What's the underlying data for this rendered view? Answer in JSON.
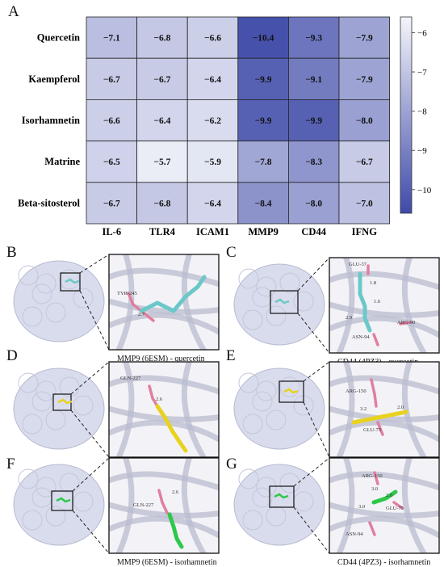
{
  "panel_a": {
    "letter": "A",
    "chart_data": {
      "type": "heatmap",
      "rows": [
        "Quercetin",
        "Kaempferol",
        "Isorhamnetin",
        "Matrine",
        "Beta-sitosterol"
      ],
      "columns": [
        "IL-6",
        "TLR4",
        "ICAM1",
        "MMP9",
        "CD44",
        "IFNG"
      ],
      "values": [
        [
          -7.1,
          -6.8,
          -6.6,
          -10.4,
          -9.3,
          -7.9
        ],
        [
          -6.7,
          -6.7,
          -6.4,
          -9.9,
          -9.1,
          -7.9
        ],
        [
          -6.6,
          -6.4,
          -6.2,
          -9.9,
          -9.9,
          -8.0
        ],
        [
          -6.5,
          -5.7,
          -5.9,
          -7.8,
          -8.3,
          -6.7
        ],
        [
          -6.7,
          -6.8,
          -6.4,
          -8.4,
          -8.0,
          -7.0
        ]
      ],
      "value_labels": [
        [
          "−7.1",
          "−6.8",
          "−6.6",
          "−10.4",
          "−9.3",
          "−7.9"
        ],
        [
          "−6.7",
          "−6.7",
          "−6.4",
          "−9.9",
          "−9.1",
          "−7.9"
        ],
        [
          "−6.6",
          "−6.4",
          "−6.2",
          "−9.9",
          "−9.9",
          "−8.0"
        ],
        [
          "−6.5",
          "−5.7",
          "−5.9",
          "−7.8",
          "−8.3",
          "−6.7"
        ],
        [
          "−6.7",
          "−6.8",
          "−6.4",
          "−8.4",
          "−8.0",
          "−7.0"
        ]
      ],
      "colorbar": {
        "range": [
          -10.6,
          -5.6
        ],
        "ticks": [
          -6,
          -7,
          -8,
          -9,
          -10
        ],
        "tick_labels": [
          "−6",
          "−7",
          "−8",
          "−9",
          "−10"
        ],
        "color_light": "#eef0f8",
        "color_dark": "#3f4aa8"
      }
    }
  },
  "panels": [
    {
      "letter": "B",
      "caption": "MMP9 (6ESM) - quercetin",
      "ligand_color": "#6cc8c8",
      "labels": [
        {
          "text": "TYR-245",
          "color": "#333"
        },
        {
          "text": "2.7",
          "color": "#333"
        }
      ]
    },
    {
      "letter": "C",
      "caption": "CD44 (4PZ3) - quercetin",
      "ligand_color": "#6cc8c8",
      "labels": [
        {
          "text": "GLU-37",
          "color": "#333"
        },
        {
          "text": "1.8",
          "color": "#333"
        },
        {
          "text": "1.6",
          "color": "#333"
        },
        {
          "text": "2.9",
          "color": "#333"
        },
        {
          "text": "ARG-90",
          "color": "#333"
        },
        {
          "text": "ASN-94",
          "color": "#333"
        }
      ]
    },
    {
      "letter": "D",
      "caption": "MMP9 (6ESM) - kaempferol",
      "ligand_color": "#e8d21e",
      "labels": [
        {
          "text": "GLN-227",
          "color": "#333"
        },
        {
          "text": "2.6",
          "color": "#333"
        }
      ]
    },
    {
      "letter": "E",
      "caption": "CD44 (4PZ3) - kaempferol",
      "ligand_color": "#e8d21e",
      "labels": [
        {
          "text": "ARG-150",
          "color": "#333"
        },
        {
          "text": "3.2",
          "color": "#333"
        },
        {
          "text": "2.0",
          "color": "#333"
        },
        {
          "text": "GLU-75",
          "color": "#333"
        }
      ]
    },
    {
      "letter": "F",
      "caption": "MMP9 (6ESM) - isorhamnetin",
      "ligand_color": "#2ec84a",
      "labels": [
        {
          "text": "GLN-227",
          "color": "#333"
        },
        {
          "text": "2.6",
          "color": "#333"
        }
      ]
    },
    {
      "letter": "G",
      "caption": "CD44 (4PZ3) - isorhamnetin",
      "ligand_color": "#2ec84a",
      "labels": [
        {
          "text": "ARG-150",
          "color": "#333"
        },
        {
          "text": "3.0",
          "color": "#333"
        },
        {
          "text": "2.0",
          "color": "#333"
        },
        {
          "text": "3.0",
          "color": "#333"
        },
        {
          "text": "GLU-75",
          "color": "#333"
        },
        {
          "text": "ASN-94",
          "color": "#333"
        }
      ]
    }
  ],
  "colors": {
    "surface": "#d9dcec",
    "ribbon": "#b9bccf",
    "residue": "#e07fa0",
    "box": "#111111"
  }
}
